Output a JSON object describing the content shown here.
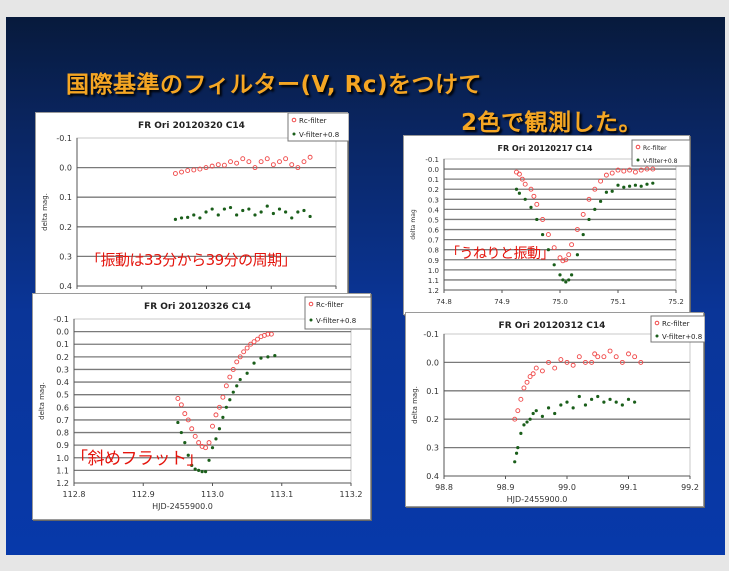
{
  "slide": {
    "title_line1": "国際基準のフィルター(V, Rc)をつけて",
    "title_line2": "2色で観測した。",
    "title_color": "#f5a623"
  },
  "colors": {
    "rc": "#f04848",
    "v": "#1a5e1a",
    "annotation": "#e4140c"
  },
  "chart_data": [
    {
      "type": "scatter",
      "title": "FR Ori  20120320   C14",
      "ylabel": "delta mag.",
      "xlabel": "",
      "ylim": [
        -0.1,
        0.4
      ],
      "y_inverted": true,
      "yticks": [
        "-0.1",
        "0.0",
        "0.1",
        "0.2",
        "0.3",
        "0.4"
      ],
      "xticks": [],
      "grid": "horizontal",
      "legend": "top-right",
      "annotation": "「振動は33分から39分の周期」",
      "series": [
        {
          "name": "Rc-filter",
          "marker": "open-circle",
          "y": [
            0.02,
            0.015,
            0.01,
            0.008,
            0.005,
            0.0,
            -0.005,
            -0.01,
            -0.008,
            -0.02,
            -0.015,
            -0.03,
            -0.02,
            0.0,
            -0.02,
            -0.03,
            -0.01,
            -0.02,
            -0.03,
            -0.01,
            0.0,
            -0.02,
            -0.035
          ]
        },
        {
          "name": "V-filter+0.8",
          "marker": "filled-dot",
          "y": [
            0.175,
            0.17,
            0.168,
            0.16,
            0.17,
            0.15,
            0.14,
            0.16,
            0.14,
            0.135,
            0.16,
            0.145,
            0.14,
            0.16,
            0.15,
            0.13,
            0.155,
            0.14,
            0.15,
            0.17,
            0.15,
            0.145,
            0.165
          ]
        }
      ]
    },
    {
      "type": "scatter",
      "title": "FR Ori  20120217   C14",
      "ylabel": "delta mag",
      "xlabel": "",
      "xlim": [
        74.8,
        75.2
      ],
      "ylim": [
        -0.1,
        1.2
      ],
      "y_inverted": true,
      "xticks": [
        "74.8",
        "74.9",
        "75.0",
        "75.1",
        "75.2"
      ],
      "yticks": [
        "-0.1",
        "0.0",
        "0.1",
        "0.2",
        "0.3",
        "0.4",
        "0.5",
        "0.6",
        "0.7",
        "0.8",
        "0.9",
        "1.0",
        "1.1",
        "1.2"
      ],
      "grid": "horizontal",
      "legend": "top-right",
      "annotation": "「うねりと振動」",
      "series": [
        {
          "name": "Rc-filter",
          "marker": "open-circle",
          "x": [
            74.925,
            74.93,
            74.935,
            74.94,
            74.95,
            74.955,
            74.96,
            74.97,
            74.98,
            74.99,
            75.0,
            75.005,
            75.01,
            75.015,
            75.02,
            75.03,
            75.04,
            75.05,
            75.06,
            75.07,
            75.08,
            75.09,
            75.1,
            75.11,
            75.12,
            75.13,
            75.14,
            75.15,
            75.16
          ],
          "y": [
            0.03,
            0.05,
            0.1,
            0.15,
            0.2,
            0.27,
            0.35,
            0.5,
            0.65,
            0.78,
            0.88,
            0.91,
            0.9,
            0.85,
            0.75,
            0.6,
            0.45,
            0.3,
            0.2,
            0.12,
            0.06,
            0.04,
            0.01,
            0.02,
            0.01,
            0.03,
            0.01,
            0.0,
            0.0
          ]
        },
        {
          "name": "V-filter+0.8",
          "marker": "filled-dot",
          "x": [
            74.925,
            74.93,
            74.94,
            74.95,
            74.96,
            74.97,
            74.98,
            74.99,
            75.0,
            75.005,
            75.01,
            75.015,
            75.02,
            75.03,
            75.04,
            75.05,
            75.06,
            75.07,
            75.08,
            75.09,
            75.1,
            75.11,
            75.12,
            75.13,
            75.14,
            75.15,
            75.16
          ],
          "y": [
            0.2,
            0.24,
            0.3,
            0.38,
            0.5,
            0.65,
            0.8,
            0.95,
            1.05,
            1.1,
            1.12,
            1.1,
            1.05,
            0.85,
            0.65,
            0.5,
            0.4,
            0.32,
            0.23,
            0.22,
            0.16,
            0.18,
            0.17,
            0.16,
            0.17,
            0.15,
            0.14
          ]
        }
      ]
    },
    {
      "type": "scatter",
      "title": "FR Ori  20120326   C14",
      "ylabel": "delta mag.",
      "xlabel": "HJD-2455900.0",
      "xlim": [
        112.8,
        113.2
      ],
      "ylim": [
        -0.1,
        1.2
      ],
      "y_inverted": true,
      "xticks": [
        "112.8",
        "112.9",
        "113.0",
        "113.1",
        "113.2"
      ],
      "yticks": [
        "-0.1",
        "0.0",
        "0.1",
        "0.2",
        "0.3",
        "0.4",
        "0.5",
        "0.6",
        "0.7",
        "0.8",
        "0.9",
        "1.0",
        "1.1",
        "1.2"
      ],
      "grid": "horizontal",
      "legend": "top-right",
      "annotation": "「斜めフラット」",
      "series": [
        {
          "name": "Rc-filter",
          "marker": "open-circle",
          "x": [
            112.95,
            112.955,
            112.96,
            112.965,
            112.97,
            112.975,
            112.98,
            112.985,
            112.99,
            112.995,
            113.0,
            113.005,
            113.01,
            113.015,
            113.02,
            113.025,
            113.03,
            113.035,
            113.04,
            113.045,
            113.05,
            113.055,
            113.06,
            113.065,
            113.07,
            113.075,
            113.08,
            113.085
          ],
          "y": [
            0.53,
            0.58,
            0.65,
            0.7,
            0.77,
            0.83,
            0.88,
            0.91,
            0.92,
            0.88,
            0.75,
            0.66,
            0.6,
            0.52,
            0.43,
            0.36,
            0.3,
            0.24,
            0.2,
            0.16,
            0.13,
            0.1,
            0.08,
            0.06,
            0.04,
            0.03,
            0.02,
            0.02
          ]
        },
        {
          "name": "V-filter+0.8",
          "marker": "filled-dot",
          "x": [
            112.95,
            112.955,
            112.96,
            112.965,
            112.97,
            112.975,
            112.98,
            112.985,
            112.99,
            112.995,
            113.0,
            113.005,
            113.01,
            113.015,
            113.02,
            113.025,
            113.03,
            113.035,
            113.04,
            113.05,
            113.06,
            113.07,
            113.08,
            113.09
          ],
          "y": [
            0.72,
            0.8,
            0.88,
            0.98,
            1.06,
            1.09,
            1.1,
            1.11,
            1.11,
            1.02,
            0.92,
            0.85,
            0.77,
            0.68,
            0.6,
            0.54,
            0.48,
            0.43,
            0.38,
            0.33,
            0.25,
            0.21,
            0.2,
            0.19
          ]
        }
      ]
    },
    {
      "type": "scatter",
      "title": "FR Ori  20120312   C14",
      "ylabel": "delta mag.",
      "xlabel": "HJD-2455900.0",
      "xlim": [
        98.8,
        99.2
      ],
      "ylim": [
        -0.1,
        0.4
      ],
      "y_inverted": true,
      "xticks": [
        "98.8",
        "98.9",
        "99.0",
        "99.1",
        "99.2"
      ],
      "yticks": [
        "-0.1",
        "0.0",
        "0.1",
        "0.2",
        "0.3",
        "0.4"
      ],
      "grid": "horizontal",
      "legend": "top-right",
      "annotation": "",
      "series": [
        {
          "name": "Rc-filter",
          "marker": "open-circle",
          "x": [
            98.915,
            98.92,
            98.925,
            98.93,
            98.935,
            98.94,
            98.945,
            98.95,
            98.96,
            98.97,
            98.98,
            98.99,
            99.0,
            99.01,
            99.02,
            99.03,
            99.04,
            99.045,
            99.05,
            99.06,
            99.07,
            99.08,
            99.09,
            99.1,
            99.11,
            99.12
          ],
          "y": [
            0.2,
            0.17,
            0.13,
            0.09,
            0.07,
            0.05,
            0.04,
            0.02,
            0.03,
            0.0,
            0.02,
            -0.01,
            0.0,
            0.01,
            -0.02,
            0.0,
            0.0,
            -0.03,
            -0.02,
            -0.02,
            -0.04,
            -0.02,
            0.0,
            -0.03,
            -0.02,
            0.0
          ]
        },
        {
          "name": "V-filter+0.8",
          "marker": "filled-dot",
          "x": [
            98.915,
            98.918,
            98.92,
            98.925,
            98.93,
            98.935,
            98.94,
            98.945,
            98.95,
            98.96,
            98.97,
            98.98,
            98.99,
            99.0,
            99.01,
            99.02,
            99.03,
            99.04,
            99.05,
            99.06,
            99.07,
            99.08,
            99.09,
            99.1,
            99.11
          ],
          "y": [
            0.35,
            0.32,
            0.3,
            0.25,
            0.22,
            0.21,
            0.2,
            0.18,
            0.17,
            0.19,
            0.16,
            0.18,
            0.15,
            0.14,
            0.16,
            0.12,
            0.15,
            0.13,
            0.12,
            0.14,
            0.13,
            0.14,
            0.15,
            0.13,
            0.14
          ]
        }
      ]
    }
  ]
}
